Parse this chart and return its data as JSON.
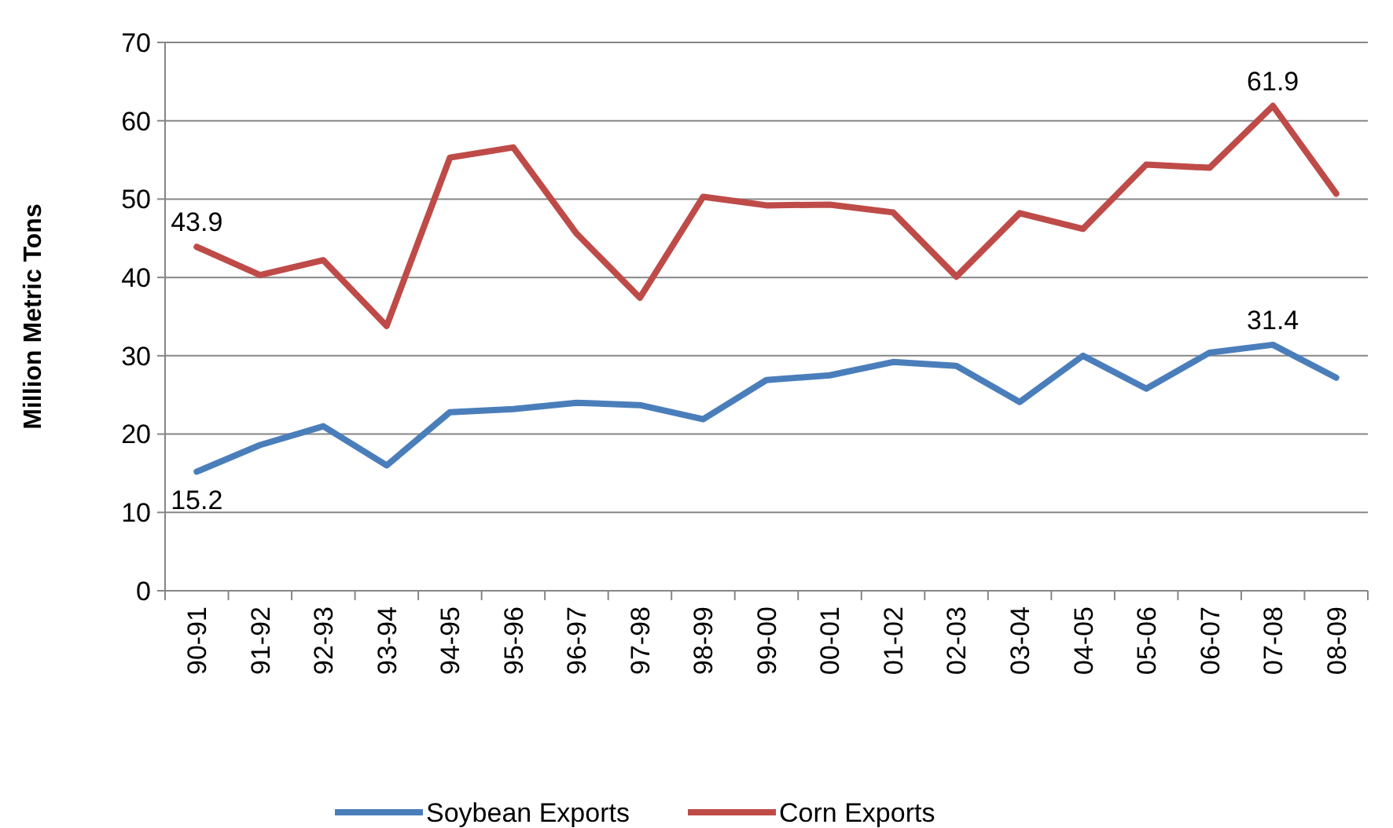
{
  "chart_data": {
    "type": "line",
    "ylabel": "Million Metric Tons",
    "categories": [
      "90-91",
      "91-92",
      "92-93",
      "93-94",
      "94-95",
      "95-96",
      "96-97",
      "97-98",
      "98-99",
      "99-00",
      "00-01",
      "01-02",
      "02-03",
      "03-04",
      "04-05",
      "05-06",
      "06-07",
      "07-08",
      "08-09"
    ],
    "series": [
      {
        "name": "Soybean Exports",
        "color": "#4a7ebb",
        "values": [
          15.2,
          18.6,
          21.0,
          16.0,
          22.8,
          23.2,
          24.0,
          23.7,
          21.9,
          26.9,
          27.5,
          29.2,
          28.7,
          24.1,
          30.0,
          25.8,
          30.4,
          31.4,
          27.2
        ],
        "value_labels": [
          "15.2",
          null,
          null,
          null,
          null,
          null,
          null,
          null,
          null,
          null,
          null,
          null,
          null,
          null,
          null,
          null,
          null,
          "31.4",
          null
        ]
      },
      {
        "name": "Corn Exports",
        "color": "#be4b48",
        "values": [
          43.9,
          40.3,
          42.2,
          33.8,
          55.3,
          56.6,
          45.6,
          37.4,
          50.3,
          49.2,
          49.3,
          48.3,
          40.1,
          48.2,
          46.2,
          54.4,
          54.0,
          61.9,
          50.7
        ],
        "value_labels": [
          "43.9",
          null,
          null,
          null,
          null,
          null,
          null,
          null,
          null,
          null,
          null,
          null,
          null,
          null,
          null,
          null,
          null,
          "61.9",
          null
        ]
      }
    ],
    "ylim": [
      0,
      70
    ],
    "yticks": [
      0,
      10,
      20,
      30,
      40,
      50,
      60,
      70
    ],
    "grid": "y",
    "legend": "bottom",
    "marker": "none",
    "line_style": "solid"
  }
}
